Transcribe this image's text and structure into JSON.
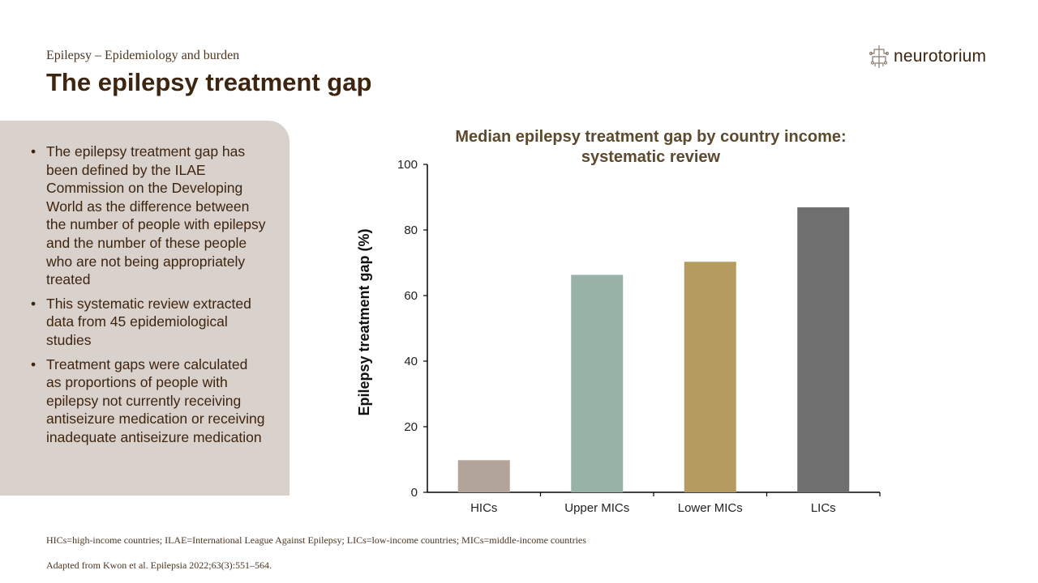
{
  "header": {
    "subtitle": "Epilepsy – Epidemiology and burden",
    "title": "The epilepsy treatment gap"
  },
  "logo": {
    "text": "neurotorium",
    "icon": "brain-circuit-icon"
  },
  "bullets": [
    "The epilepsy treatment gap has been defined by the ILAE Commission on the Developing World as the difference between the number of people with epilepsy and the number of these people who are not being appropriately treated",
    "This systematic review extracted data from 45 epidemiological studies",
    "Treatment gaps were calculated as proportions of people with epilepsy not currently receiving antiseizure medication or receiving inadequate antiseizure medication"
  ],
  "chart_data": {
    "type": "bar",
    "title": "Median epilepsy treatment gap by country income: systematic review",
    "xlabel": "",
    "ylabel": "Epilepsy treatment gap (%)",
    "categories": [
      "HICs",
      "Upper MICs",
      "Lower MICs",
      "LICs"
    ],
    "values": [
      9.8,
      66.3,
      70.3,
      86.9
    ],
    "colors": [
      "#b3a49a",
      "#99b2a7",
      "#b69b5e",
      "#6f6f6f"
    ],
    "ylim": [
      0,
      100
    ],
    "yticks": [
      0,
      20,
      40,
      60,
      80,
      100
    ],
    "grid": false,
    "legend": "none"
  },
  "footnotes": {
    "abbreviations": "HICs=high-income countries; ILAE=International League Against Epilepsy; LICs=low-income countries; MICs=middle-income countries",
    "source": "Adapted from Kwon et al. Epilepsia 2022;63(3):551–564."
  }
}
